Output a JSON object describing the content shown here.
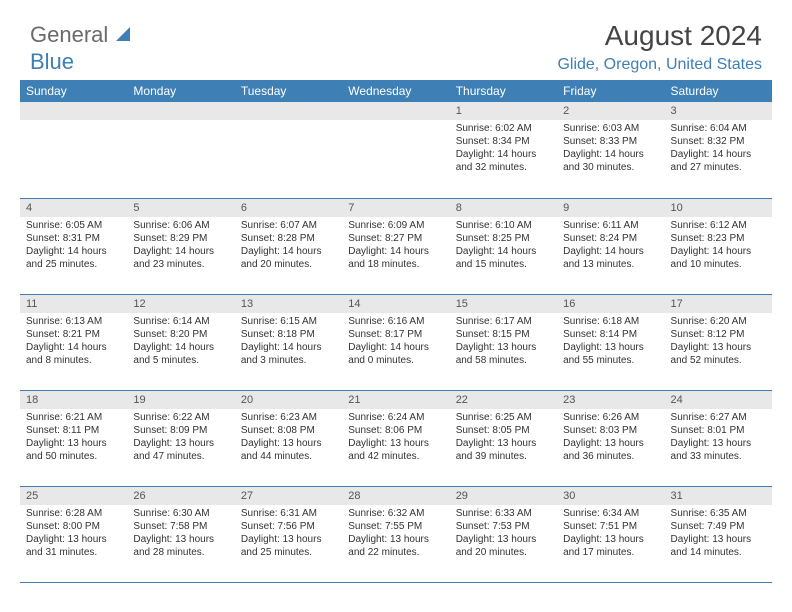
{
  "brand": {
    "partA": "General",
    "partB": "Blue"
  },
  "colors": {
    "accent": "#3e7fb5",
    "headerText": "#ffffff",
    "dayStripe": "#e8e8e8",
    "border": "#3e7fb5"
  },
  "title": "August 2024",
  "location": "Glide, Oregon, United States",
  "weekdays": [
    "Sunday",
    "Monday",
    "Tuesday",
    "Wednesday",
    "Thursday",
    "Friday",
    "Saturday"
  ],
  "weeks": [
    [
      null,
      null,
      null,
      null,
      {
        "n": "1",
        "sr": "Sunrise: 6:02 AM",
        "ss": "Sunset: 8:34 PM",
        "dl": "Daylight: 14 hours and 32 minutes."
      },
      {
        "n": "2",
        "sr": "Sunrise: 6:03 AM",
        "ss": "Sunset: 8:33 PM",
        "dl": "Daylight: 14 hours and 30 minutes."
      },
      {
        "n": "3",
        "sr": "Sunrise: 6:04 AM",
        "ss": "Sunset: 8:32 PM",
        "dl": "Daylight: 14 hours and 27 minutes."
      }
    ],
    [
      {
        "n": "4",
        "sr": "Sunrise: 6:05 AM",
        "ss": "Sunset: 8:31 PM",
        "dl": "Daylight: 14 hours and 25 minutes."
      },
      {
        "n": "5",
        "sr": "Sunrise: 6:06 AM",
        "ss": "Sunset: 8:29 PM",
        "dl": "Daylight: 14 hours and 23 minutes."
      },
      {
        "n": "6",
        "sr": "Sunrise: 6:07 AM",
        "ss": "Sunset: 8:28 PM",
        "dl": "Daylight: 14 hours and 20 minutes."
      },
      {
        "n": "7",
        "sr": "Sunrise: 6:09 AM",
        "ss": "Sunset: 8:27 PM",
        "dl": "Daylight: 14 hours and 18 minutes."
      },
      {
        "n": "8",
        "sr": "Sunrise: 6:10 AM",
        "ss": "Sunset: 8:25 PM",
        "dl": "Daylight: 14 hours and 15 minutes."
      },
      {
        "n": "9",
        "sr": "Sunrise: 6:11 AM",
        "ss": "Sunset: 8:24 PM",
        "dl": "Daylight: 14 hours and 13 minutes."
      },
      {
        "n": "10",
        "sr": "Sunrise: 6:12 AM",
        "ss": "Sunset: 8:23 PM",
        "dl": "Daylight: 14 hours and 10 minutes."
      }
    ],
    [
      {
        "n": "11",
        "sr": "Sunrise: 6:13 AM",
        "ss": "Sunset: 8:21 PM",
        "dl": "Daylight: 14 hours and 8 minutes."
      },
      {
        "n": "12",
        "sr": "Sunrise: 6:14 AM",
        "ss": "Sunset: 8:20 PM",
        "dl": "Daylight: 14 hours and 5 minutes."
      },
      {
        "n": "13",
        "sr": "Sunrise: 6:15 AM",
        "ss": "Sunset: 8:18 PM",
        "dl": "Daylight: 14 hours and 3 minutes."
      },
      {
        "n": "14",
        "sr": "Sunrise: 6:16 AM",
        "ss": "Sunset: 8:17 PM",
        "dl": "Daylight: 14 hours and 0 minutes."
      },
      {
        "n": "15",
        "sr": "Sunrise: 6:17 AM",
        "ss": "Sunset: 8:15 PM",
        "dl": "Daylight: 13 hours and 58 minutes."
      },
      {
        "n": "16",
        "sr": "Sunrise: 6:18 AM",
        "ss": "Sunset: 8:14 PM",
        "dl": "Daylight: 13 hours and 55 minutes."
      },
      {
        "n": "17",
        "sr": "Sunrise: 6:20 AM",
        "ss": "Sunset: 8:12 PM",
        "dl": "Daylight: 13 hours and 52 minutes."
      }
    ],
    [
      {
        "n": "18",
        "sr": "Sunrise: 6:21 AM",
        "ss": "Sunset: 8:11 PM",
        "dl": "Daylight: 13 hours and 50 minutes."
      },
      {
        "n": "19",
        "sr": "Sunrise: 6:22 AM",
        "ss": "Sunset: 8:09 PM",
        "dl": "Daylight: 13 hours and 47 minutes."
      },
      {
        "n": "20",
        "sr": "Sunrise: 6:23 AM",
        "ss": "Sunset: 8:08 PM",
        "dl": "Daylight: 13 hours and 44 minutes."
      },
      {
        "n": "21",
        "sr": "Sunrise: 6:24 AM",
        "ss": "Sunset: 8:06 PM",
        "dl": "Daylight: 13 hours and 42 minutes."
      },
      {
        "n": "22",
        "sr": "Sunrise: 6:25 AM",
        "ss": "Sunset: 8:05 PM",
        "dl": "Daylight: 13 hours and 39 minutes."
      },
      {
        "n": "23",
        "sr": "Sunrise: 6:26 AM",
        "ss": "Sunset: 8:03 PM",
        "dl": "Daylight: 13 hours and 36 minutes."
      },
      {
        "n": "24",
        "sr": "Sunrise: 6:27 AM",
        "ss": "Sunset: 8:01 PM",
        "dl": "Daylight: 13 hours and 33 minutes."
      }
    ],
    [
      {
        "n": "25",
        "sr": "Sunrise: 6:28 AM",
        "ss": "Sunset: 8:00 PM",
        "dl": "Daylight: 13 hours and 31 minutes."
      },
      {
        "n": "26",
        "sr": "Sunrise: 6:30 AM",
        "ss": "Sunset: 7:58 PM",
        "dl": "Daylight: 13 hours and 28 minutes."
      },
      {
        "n": "27",
        "sr": "Sunrise: 6:31 AM",
        "ss": "Sunset: 7:56 PM",
        "dl": "Daylight: 13 hours and 25 minutes."
      },
      {
        "n": "28",
        "sr": "Sunrise: 6:32 AM",
        "ss": "Sunset: 7:55 PM",
        "dl": "Daylight: 13 hours and 22 minutes."
      },
      {
        "n": "29",
        "sr": "Sunrise: 6:33 AM",
        "ss": "Sunset: 7:53 PM",
        "dl": "Daylight: 13 hours and 20 minutes."
      },
      {
        "n": "30",
        "sr": "Sunrise: 6:34 AM",
        "ss": "Sunset: 7:51 PM",
        "dl": "Daylight: 13 hours and 17 minutes."
      },
      {
        "n": "31",
        "sr": "Sunrise: 6:35 AM",
        "ss": "Sunset: 7:49 PM",
        "dl": "Daylight: 13 hours and 14 minutes."
      }
    ]
  ]
}
